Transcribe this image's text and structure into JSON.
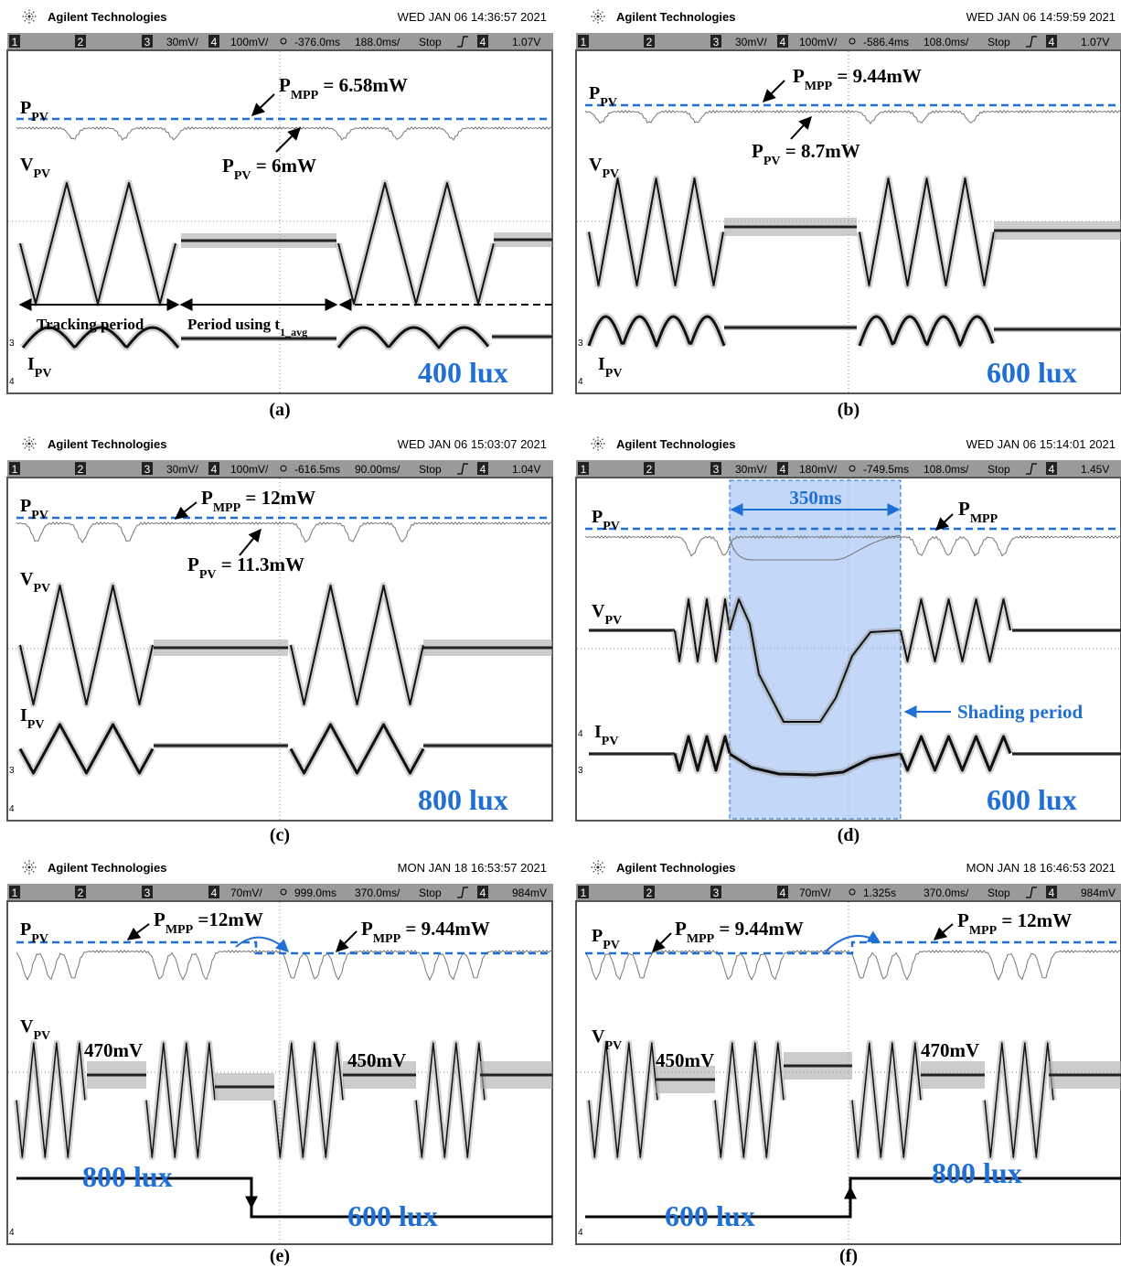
{
  "brand": "Agilent Technologies",
  "channels": [
    "1",
    "2",
    "3",
    "4"
  ],
  "panels": [
    {
      "timestamp": "WED JAN 06 14:36:57 2021",
      "status": {
        "ch3_scale": "30mV/",
        "ch4_scale": "100mV/",
        "delay": "-376.0ms",
        "timebase": "188.0ms/",
        "mode": "Stop",
        "trigger_channel": "4",
        "trigger_level": "1.07V"
      },
      "signals": {
        "p": {
          "main": "P",
          "sub": "PV"
        },
        "v": {
          "main": "V",
          "sub": "PV"
        },
        "i": {
          "main": "I",
          "sub": "PV"
        }
      },
      "annotations": [
        {
          "main": "P",
          "sub": "MPP",
          "rest": " = 6.58mW"
        },
        {
          "main": "P",
          "sub": "PV",
          "rest": " = 6mW"
        },
        {
          "main": "Tracking period"
        },
        {
          "main": "Period using t",
          "sub": "1_avg"
        },
        {
          "main": "400 lux"
        }
      ],
      "caption": "(a)"
    },
    {
      "timestamp": "WED JAN 06 14:59:59 2021",
      "status": {
        "ch3_scale": "30mV/",
        "ch4_scale": "100mV/",
        "delay": "-586.4ms",
        "timebase": "108.0ms/",
        "mode": "Stop",
        "trigger_channel": "4",
        "trigger_level": "1.07V"
      },
      "signals": {
        "p": {
          "main": "P",
          "sub": "PV"
        },
        "v": {
          "main": "V",
          "sub": "PV"
        },
        "i": {
          "main": "I",
          "sub": "PV"
        }
      },
      "annotations": [
        {
          "main": "P",
          "sub": "MPP",
          "rest": " = 9.44mW"
        },
        {
          "main": "P",
          "sub": "PV",
          "rest": " = 8.7mW"
        },
        {
          "main": "600 lux"
        }
      ],
      "caption": "(b)"
    },
    {
      "timestamp": "WED JAN 06 15:03:07 2021",
      "status": {
        "ch3_scale": "30mV/",
        "ch4_scale": "100mV/",
        "delay": "-616.5ms",
        "timebase": "90.00ms/",
        "mode": "Stop",
        "trigger_channel": "4",
        "trigger_level": "1.04V"
      },
      "signals": {
        "p": {
          "main": "P",
          "sub": "PV"
        },
        "v": {
          "main": "V",
          "sub": "PV"
        },
        "i": {
          "main": "I",
          "sub": "PV"
        }
      },
      "annotations": [
        {
          "main": "P",
          "sub": "MPP",
          "rest": " = 12mW"
        },
        {
          "main": "P",
          "sub": "PV",
          "rest": " = 11.3mW"
        },
        {
          "main": "800 lux"
        }
      ],
      "caption": "(c)"
    },
    {
      "timestamp": "WED JAN 06 15:14:01 2021",
      "status": {
        "ch3_scale": "30mV/",
        "ch4_scale": "180mV/",
        "delay": "-749.5ms",
        "timebase": "108.0ms/",
        "mode": "Stop",
        "trigger_channel": "4",
        "trigger_level": "1.45V"
      },
      "signals": {
        "p": {
          "main": "P",
          "sub": "PV"
        },
        "v": {
          "main": "V",
          "sub": "PV"
        },
        "i": {
          "main": "I",
          "sub": "PV"
        }
      },
      "annotations": [
        {
          "main": "350ms"
        },
        {
          "main": "P",
          "sub": "MPP"
        },
        {
          "main": "Shading period"
        },
        {
          "main": "600 lux"
        }
      ],
      "caption": "(d)"
    },
    {
      "timestamp": "MON JAN 18 16:53:57 2021",
      "status": {
        "ch4_scale": "70mV/",
        "delay": "999.0ms",
        "timebase": "370.0ms/",
        "mode": "Stop",
        "trigger_channel": "4",
        "trigger_level": "984mV"
      },
      "signals": {
        "p": {
          "main": "P",
          "sub": "PV"
        },
        "v": {
          "main": "V",
          "sub": "PV"
        }
      },
      "annotations": [
        {
          "main": "P",
          "sub": "MPP",
          "rest": " =12mW"
        },
        {
          "main": "P",
          "sub": "MPP",
          "rest": " = 9.44mW"
        },
        {
          "main": "470mV"
        },
        {
          "main": "450mV"
        },
        {
          "main": "800 lux"
        },
        {
          "main": "600 lux"
        }
      ],
      "caption": "(e)"
    },
    {
      "timestamp": "MON JAN 18 16:46:53 2021",
      "status": {
        "ch4_scale": "70mV/",
        "delay": "1.325s",
        "timebase": "370.0ms/",
        "mode": "Stop",
        "trigger_channel": "4",
        "trigger_level": "984mV"
      },
      "signals": {
        "p": {
          "main": "P",
          "sub": "PV"
        },
        "v": {
          "main": "V",
          "sub": "PV"
        }
      },
      "annotations": [
        {
          "main": "P",
          "sub": "MPP",
          "rest": " = 9.44mW"
        },
        {
          "main": "P",
          "sub": "MPP",
          "rest": " = 12mW"
        },
        {
          "main": "450mV"
        },
        {
          "main": "470mV"
        },
        {
          "main": "800 lux"
        },
        {
          "main": "600 lux"
        }
      ],
      "caption": "(f)"
    }
  ]
}
